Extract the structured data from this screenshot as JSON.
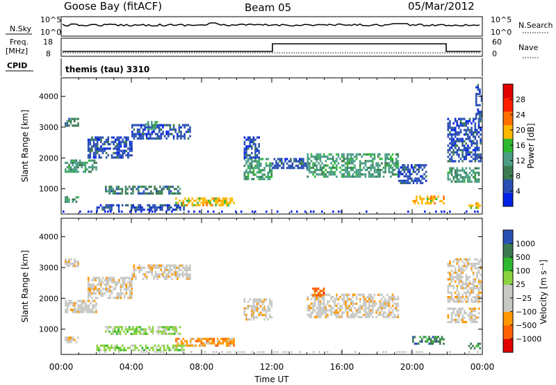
{
  "header": {
    "station": "Goose Bay (fitACF)",
    "beam": "Beam 05",
    "date": "05/Mar/2012"
  },
  "labels": {
    "nsky": "N.Sky",
    "nsearch": "N.Search",
    "freq_line1": "Freq.",
    "freq_line2": "[MHz]",
    "nave": "Nave",
    "cpid": "CPID",
    "cpid_value": "themis (tau) 3310",
    "slant_range": "Slant Range [km]",
    "time_ut": "Time UT",
    "power_label": "Power [dB]",
    "velocity_label": "Velocity [m s⁻¹]"
  },
  "noise_axis": {
    "left_top": "10^5",
    "left_bottom": "10^0",
    "right_top": "10^5",
    "right_bottom": "10^0"
  },
  "freq_axis": {
    "left_top": "18",
    "left_bottom": "8",
    "right_top": "60",
    "right_bottom": "0"
  },
  "colors": {
    "power": [
      "#0022e6",
      "#2a50b4",
      "#3c7a50",
      "#4a9e86",
      "#2eb830",
      "#ffb800",
      "#ff7000",
      "#ff2000",
      "#e00000"
    ],
    "velocity": [
      "#e00000",
      "#ff6000",
      "#ff9800",
      "#c8c8c4",
      "#c8c8c4",
      "#8cd240",
      "#2eb830",
      "#3c7a50",
      "#2a50b4"
    ]
  },
  "chart_data": [
    {
      "type": "heatmap",
      "title": "Power",
      "ylabel": "Slant Range [km]",
      "xlabel": "Time UT",
      "x_ticks": [
        "00:00",
        "04:00",
        "08:00",
        "12:00",
        "16:00",
        "20:00",
        "00:00"
      ],
      "y_ticks": [
        "1000",
        "2000",
        "3000",
        "4000"
      ],
      "x_range_hours": [
        0,
        24
      ],
      "y_range_km": [
        180,
        4600
      ],
      "colorbar_ticks": [
        "4",
        "8",
        "12",
        "16",
        "20",
        "24",
        "28"
      ],
      "colorbar_range": [
        0,
        32
      ],
      "regions": [
        {
          "t": [
            0.2,
            1.0
          ],
          "r": [
            3050,
            3300
          ],
          "c": 2
        },
        {
          "t": [
            0.2,
            2.0
          ],
          "r": [
            1580,
            1950
          ],
          "c": 3
        },
        {
          "t": [
            1.5,
            4.0
          ],
          "r": [
            2000,
            2700
          ],
          "c": 1
        },
        {
          "t": [
            4.0,
            7.3
          ],
          "r": [
            2650,
            3100
          ],
          "c": 1
        },
        {
          "t": [
            4.8,
            5.5
          ],
          "r": [
            2950,
            3200
          ],
          "c": 3
        },
        {
          "t": [
            2.5,
            6.8
          ],
          "r": [
            820,
            1100
          ],
          "c": 2
        },
        {
          "t": [
            0.2,
            1.0
          ],
          "r": [
            560,
            760
          ],
          "c": 3
        },
        {
          "t": [
            6.5,
            9.8
          ],
          "r": [
            440,
            720
          ],
          "c": 5
        },
        {
          "t": [
            2.0,
            7.0
          ],
          "r": [
            300,
            500
          ],
          "c": 1
        },
        {
          "t": [
            10.4,
            12.0
          ],
          "r": [
            1300,
            2000
          ],
          "c": 3
        },
        {
          "t": [
            10.4,
            11.3
          ],
          "r": [
            2000,
            2700
          ],
          "c": 1
        },
        {
          "t": [
            12.0,
            14.0
          ],
          "r": [
            1700,
            2000
          ],
          "c": 1
        },
        {
          "t": [
            14.0,
            19.2
          ],
          "r": [
            1400,
            2150
          ],
          "c": 3
        },
        {
          "t": [
            19.2,
            20.8
          ],
          "r": [
            1200,
            1800
          ],
          "c": 1
        },
        {
          "t": [
            20.0,
            21.8
          ],
          "r": [
            500,
            780
          ],
          "c": 5
        },
        {
          "t": [
            22.0,
            23.8
          ],
          "r": [
            1250,
            1700
          ],
          "c": 3
        },
        {
          "t": [
            22.0,
            23.9
          ],
          "r": [
            1900,
            3300
          ],
          "c": 1
        },
        {
          "t": [
            23.2,
            23.9
          ],
          "r": [
            380,
            560
          ],
          "c": 5
        },
        {
          "t": [
            23.6,
            23.95
          ],
          "r": [
            3300,
            4400
          ],
          "c": 1
        }
      ]
    },
    {
      "type": "heatmap",
      "title": "Velocity",
      "ylabel": "Slant Range [km]",
      "xlabel": "Time UT",
      "x_ticks": [
        "00:00",
        "04:00",
        "08:00",
        "12:00",
        "16:00",
        "20:00",
        "00:00"
      ],
      "y_ticks": [
        "1000",
        "2000",
        "3000",
        "4000"
      ],
      "x_range_hours": [
        0,
        24
      ],
      "y_range_km": [
        180,
        4600
      ],
      "colorbar_ticks": [
        "1000",
        "500",
        "100",
        "25",
        "−25",
        "−100",
        "−500",
        "−1000"
      ],
      "regions": [
        {
          "t": [
            0.2,
            1.0
          ],
          "r": [
            3050,
            3300
          ],
          "c": 3
        },
        {
          "t": [
            0.2,
            2.0
          ],
          "r": [
            1580,
            1950
          ],
          "c": 3
        },
        {
          "t": [
            1.5,
            4.0
          ],
          "r": [
            2000,
            2700
          ],
          "c": 3
        },
        {
          "t": [
            4.0,
            7.3
          ],
          "r": [
            2650,
            3100
          ],
          "c": 3
        },
        {
          "t": [
            2.5,
            6.8
          ],
          "r": [
            820,
            1100
          ],
          "c": 5
        },
        {
          "t": [
            0.2,
            1.0
          ],
          "r": [
            560,
            760
          ],
          "c": 3
        },
        {
          "t": [
            6.5,
            9.8
          ],
          "r": [
            440,
            720
          ],
          "c": 2
        },
        {
          "t": [
            2.0,
            7.0
          ],
          "r": [
            300,
            500
          ],
          "c": 5
        },
        {
          "t": [
            10.4,
            12.0
          ],
          "r": [
            1300,
            2000
          ],
          "c": 3
        },
        {
          "t": [
            14.0,
            19.2
          ],
          "r": [
            1400,
            2150
          ],
          "c": 3
        },
        {
          "t": [
            14.3,
            15.0
          ],
          "r": [
            2100,
            2350
          ],
          "c": 1
        },
        {
          "t": [
            20.0,
            21.8
          ],
          "r": [
            500,
            780
          ],
          "c": 7
        },
        {
          "t": [
            22.0,
            23.8
          ],
          "r": [
            1250,
            1700
          ],
          "c": 3
        },
        {
          "t": [
            22.0,
            23.9
          ],
          "r": [
            1900,
            3300
          ],
          "c": 3
        },
        {
          "t": [
            23.2,
            23.9
          ],
          "r": [
            380,
            560
          ],
          "c": 7
        }
      ]
    }
  ]
}
